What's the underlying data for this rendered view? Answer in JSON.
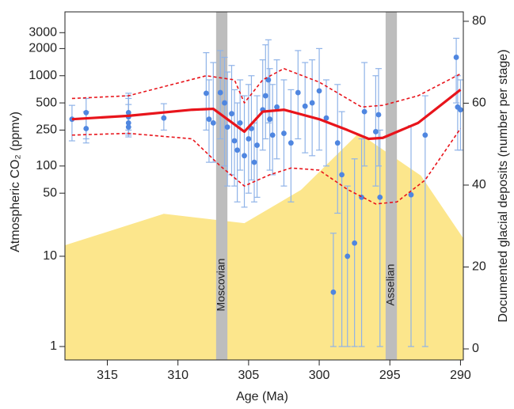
{
  "chart_data": {
    "type": "combo",
    "x_label": "Age (Ma)",
    "y_label": "Atmospheric CO₂ (ppmv)",
    "y2_label": "Documented glacial deposits (number per stage)",
    "xlim": [
      318,
      289.8
    ],
    "xticks": [
      315,
      310,
      305,
      300,
      295,
      290
    ],
    "ylim": [
      0.71,
      5100
    ],
    "y_scale": "log",
    "yticks": [
      1,
      10,
      50,
      100,
      250,
      500,
      1000,
      2000,
      3000
    ],
    "y2lim": [
      -2.7,
      82.3
    ],
    "y2ticks": [
      0,
      20,
      40,
      60,
      80
    ],
    "bands": [
      {
        "name": "Moscovian",
        "range": [
          307.3,
          306.5
        ],
        "color": "#bdbdbd"
      },
      {
        "name": "Asselian",
        "range": [
          295.3,
          294.5
        ],
        "color": "#bdbdbd"
      }
    ],
    "series": [
      {
        "type": "area",
        "axis": "y2",
        "color": "#fce68c",
        "x": [
          318,
          311,
          305.3,
          301.3,
          297.2,
          292.8,
          289.8
        ],
        "values": [
          25.3,
          33,
          30.7,
          38.8,
          52.7,
          42.3,
          27
        ]
      },
      {
        "type": "scatter",
        "color": "#4f86e0",
        "error_color": "#8fb3e8",
        "x": [
          317.5,
          316.5,
          316.5,
          313.5,
          313.5,
          313.5,
          313.5,
          311,
          308,
          307.8,
          307.5,
          307,
          306.7,
          306.5,
          306.2,
          306,
          305.8,
          305.6,
          305.3,
          305,
          304.8,
          304.6,
          304.4,
          304,
          303.8,
          303.6,
          303.5,
          303.3,
          303,
          302.5,
          302,
          301.5,
          301,
          300.5,
          300,
          299.5,
          299,
          298.7,
          298.4,
          298,
          297.5,
          297,
          296.8,
          296,
          295.8,
          295.7,
          293.5,
          292.5,
          290.3,
          290.2,
          290
        ],
        "values": [
          330,
          390,
          260,
          350,
          300,
          270,
          390,
          340,
          640,
          330,
          300,
          650,
          500,
          270,
          380,
          190,
          150,
          300,
          130,
          200,
          260,
          110,
          170,
          420,
          600,
          900,
          330,
          220,
          450,
          230,
          180,
          650,
          460,
          500,
          680,
          340,
          4,
          180,
          80,
          10,
          14,
          45,
          400,
          240,
          370,
          45,
          48,
          220,
          1600,
          450,
          420
        ],
        "lower": [
          190,
          200,
          180,
          230,
          220,
          210,
          250,
          250,
          250,
          110,
          110,
          200,
          100,
          60,
          80,
          60,
          40,
          90,
          35,
          50,
          70,
          40,
          45,
          150,
          200,
          300,
          90,
          80,
          120,
          60,
          40,
          200,
          140,
          130,
          150,
          100,
          1,
          30,
          1,
          1,
          1,
          1,
          100,
          60,
          100,
          1,
          1,
          1,
          500,
          150,
          150
        ],
        "upper": [
          470,
          560,
          400,
          600,
          480,
          560,
          640,
          490,
          1800,
          900,
          1400,
          1900,
          1600,
          1100,
          1300,
          700,
          500,
          900,
          600,
          800,
          1000,
          300,
          600,
          1500,
          2200,
          2500,
          1200,
          800,
          1500,
          900,
          700,
          1900,
          1400,
          1500,
          2000,
          900,
          18,
          800,
          400,
          60,
          120,
          200,
          1400,
          1000,
          1200,
          250,
          280,
          600,
          2600,
          1000,
          900
        ]
      },
      {
        "type": "line",
        "color": "#e8141b",
        "dashed": true,
        "x": [
          317.5,
          313.5,
          308,
          306,
          305.3,
          304,
          302.5,
          300,
          297,
          295.5,
          293,
          290
        ],
        "values": [
          560,
          600,
          1000,
          900,
          500,
          900,
          1200,
          850,
          450,
          470,
          600,
          1050
        ]
      },
      {
        "type": "line",
        "color": "#e8141b",
        "dashed": true,
        "x": [
          317.5,
          313.5,
          309,
          307,
          305.3,
          303.5,
          302,
          300,
          298,
          296,
          294.5,
          292.5,
          290
        ],
        "values": [
          220,
          230,
          200,
          100,
          60,
          80,
          95,
          90,
          55,
          38,
          40,
          70,
          260
        ]
      },
      {
        "type": "line",
        "color": "#e8141b",
        "dashed": false,
        "x": [
          317.5,
          313.5,
          309,
          307.5,
          305.3,
          304,
          302.5,
          300,
          298,
          296.5,
          295.5,
          293,
          290
        ],
        "values": [
          330,
          360,
          420,
          430,
          240,
          400,
          420,
          330,
          250,
          200,
          205,
          300,
          700
        ]
      }
    ]
  }
}
